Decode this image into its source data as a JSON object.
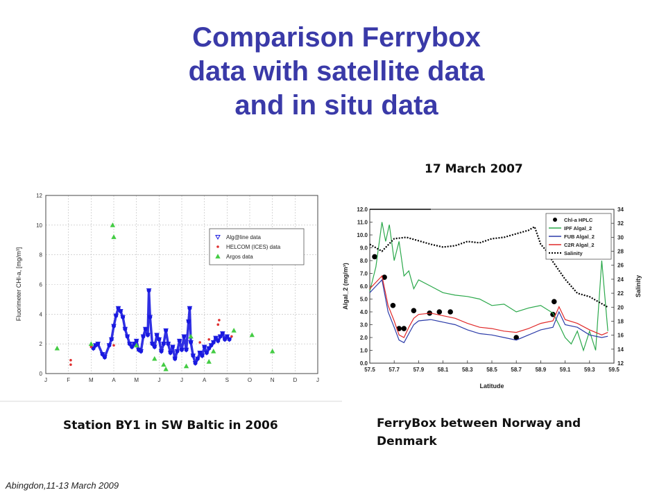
{
  "slide": {
    "title_lines": [
      "Comparison Ferrybox",
      "data with satellite data",
      "and in situ data"
    ],
    "date_label": "17 March 2007",
    "caption_left": "Station BY1 in SW Baltic in 2006",
    "caption_right": "FerryBox between Norway and Denmark",
    "footer": "Abingdon,11-13 March 2009"
  },
  "chart_data": [
    {
      "type": "scatter",
      "ylabel": "Fluorimeter CHl-a, [mg/m³]",
      "xlabel": "",
      "x_ticks": [
        "J",
        "F",
        "M",
        "A",
        "M",
        "J",
        "J",
        "A",
        "S",
        "O",
        "N",
        "D",
        "J"
      ],
      "ylim": [
        0,
        12
      ],
      "y_ticks": [
        0,
        2,
        4,
        6,
        8,
        10,
        12
      ],
      "grid": true,
      "legend_position": "upper-right",
      "series": [
        {
          "name": "Alg@line data",
          "color": "#1a1ae0",
          "marker": "triangle-down",
          "points": [
            [
              2.1,
              1.7
            ],
            [
              2.2,
              1.9
            ],
            [
              2.3,
              2.0
            ],
            [
              2.5,
              1.3
            ],
            [
              2.6,
              1.1
            ],
            [
              2.8,
              1.9
            ],
            [
              2.9,
              2.3
            ],
            [
              3.0,
              3.2
            ],
            [
              3.1,
              3.9
            ],
            [
              3.2,
              4.4
            ],
            [
              3.3,
              4.2
            ],
            [
              3.4,
              3.8
            ],
            [
              3.5,
              3.0
            ],
            [
              3.6,
              2.5
            ],
            [
              3.7,
              2.0
            ],
            [
              3.8,
              1.8
            ],
            [
              3.9,
              2.0
            ],
            [
              4.0,
              2.2
            ],
            [
              4.1,
              1.6
            ],
            [
              4.2,
              1.5
            ],
            [
              4.3,
              2.5
            ],
            [
              4.4,
              3.0
            ],
            [
              4.5,
              2.6
            ],
            [
              4.55,
              5.6
            ],
            [
              4.6,
              3.8
            ],
            [
              4.7,
              2.0
            ],
            [
              4.8,
              1.8
            ],
            [
              4.9,
              2.6
            ],
            [
              5.0,
              2.3
            ],
            [
              5.1,
              1.5
            ],
            [
              5.2,
              2.0
            ],
            [
              5.3,
              2.9
            ],
            [
              5.4,
              2.0
            ],
            [
              5.5,
              1.4
            ],
            [
              5.6,
              1.8
            ],
            [
              5.7,
              1.0
            ],
            [
              5.8,
              1.5
            ],
            [
              5.9,
              2.2
            ],
            [
              6.0,
              1.6
            ],
            [
              6.1,
              2.5
            ],
            [
              6.2,
              1.6
            ],
            [
              6.3,
              3.5
            ],
            [
              6.35,
              4.4
            ],
            [
              6.4,
              2.1
            ],
            [
              6.5,
              1.2
            ],
            [
              6.6,
              0.7
            ],
            [
              6.7,
              1.0
            ],
            [
              6.8,
              1.4
            ],
            [
              6.9,
              1.2
            ],
            [
              7.0,
              1.8
            ],
            [
              7.1,
              1.4
            ],
            [
              7.2,
              1.7
            ],
            [
              7.3,
              1.9
            ],
            [
              7.4,
              2.1
            ],
            [
              7.5,
              2.4
            ],
            [
              7.6,
              2.2
            ],
            [
              7.7,
              2.5
            ],
            [
              7.8,
              2.7
            ],
            [
              7.9,
              2.3
            ],
            [
              8.0,
              2.5
            ],
            [
              8.1,
              2.3
            ]
          ]
        },
        {
          "name": "HELCOM (ICES) data",
          "color": "#e03030",
          "marker": "star",
          "points": [
            [
              1.1,
              0.6
            ],
            [
              1.1,
              0.9
            ],
            [
              2.0,
              1.8
            ],
            [
              3.0,
              1.9
            ],
            [
              6.8,
              2.1
            ],
            [
              7.2,
              2.3
            ],
            [
              7.6,
              3.3
            ],
            [
              7.65,
              3.6
            ],
            [
              8.2,
              2.5
            ]
          ]
        },
        {
          "name": "Argos data",
          "color": "#44cc44",
          "marker": "triangle-up",
          "points": [
            [
              0.5,
              1.7
            ],
            [
              2.0,
              2.0
            ],
            [
              2.95,
              10.0
            ],
            [
              3.0,
              9.2
            ],
            [
              4.0,
              1.9
            ],
            [
              4.8,
              1.0
            ],
            [
              5.2,
              0.6
            ],
            [
              5.3,
              0.3
            ],
            [
              6.2,
              0.5
            ],
            [
              6.4,
              2.5
            ],
            [
              7.2,
              0.8
            ],
            [
              7.4,
              1.5
            ],
            [
              8.3,
              2.9
            ],
            [
              9.1,
              2.6
            ],
            [
              10.0,
              1.5
            ]
          ]
        }
      ]
    },
    {
      "type": "line",
      "xlabel": "Latitude",
      "ylabel": "Algal_2 (mg/m³)",
      "y2label": "Salinity",
      "xlim": [
        57.5,
        59.5
      ],
      "x_ticks": [
        57.5,
        57.7,
        57.9,
        58.1,
        58.3,
        58.5,
        58.7,
        58.9,
        59.1,
        59.3,
        59.5
      ],
      "ylim": [
        0,
        12
      ],
      "y_ticks": [
        0.0,
        1.0,
        2.0,
        3.0,
        4.0,
        5.0,
        6.0,
        7.0,
        8.0,
        9.0,
        10.0,
        11.0,
        12.0
      ],
      "y2lim": [
        12,
        34
      ],
      "y2_ticks": [
        12,
        14,
        16,
        18,
        20,
        22,
        24,
        26,
        28,
        30,
        32,
        34
      ],
      "legend_position": "upper-right",
      "series": [
        {
          "name": "Chl-a HPLC",
          "color": "#000000",
          "marker": "circle",
          "axis": "left",
          "x": [
            57.54,
            57.62,
            57.69,
            57.74,
            57.78,
            57.86,
            57.99,
            58.07,
            58.16,
            58.7,
            59.0,
            59.01
          ],
          "y": [
            8.3,
            6.7,
            4.5,
            2.7,
            2.7,
            4.1,
            3.9,
            4.0,
            4.0,
            2.0,
            3.8,
            4.8
          ]
        },
        {
          "name": "IPF Algal_2",
          "color": "#2aa84a",
          "axis": "left",
          "x": [
            57.5,
            57.55,
            57.6,
            57.63,
            57.66,
            57.7,
            57.74,
            57.78,
            57.82,
            57.86,
            57.9,
            58.0,
            58.1,
            58.2,
            58.3,
            58.4,
            58.5,
            58.6,
            58.7,
            58.8,
            58.9,
            59.0,
            59.05,
            59.1,
            59.15,
            59.2,
            59.25,
            59.3,
            59.35,
            59.4,
            59.45
          ],
          "y": [
            5.6,
            7.5,
            11.0,
            9.5,
            10.8,
            8.0,
            9.5,
            6.8,
            7.2,
            5.8,
            6.5,
            6.0,
            5.5,
            5.3,
            5.2,
            5.0,
            4.5,
            4.6,
            4.0,
            4.3,
            4.5,
            3.9,
            3.0,
            2.0,
            1.5,
            2.5,
            1.0,
            2.5,
            1.0,
            8.0,
            2.5
          ]
        },
        {
          "name": "FUB Algal_2",
          "color": "#2a3aa8",
          "axis": "left",
          "x": [
            57.5,
            57.55,
            57.6,
            57.65,
            57.7,
            57.74,
            57.78,
            57.82,
            57.86,
            57.9,
            58.0,
            58.1,
            58.2,
            58.3,
            58.4,
            58.5,
            58.6,
            58.7,
            58.8,
            58.9,
            59.0,
            59.05,
            59.1,
            59.2,
            59.3,
            59.4,
            59.45
          ],
          "y": [
            5.5,
            6.0,
            6.5,
            4.0,
            2.8,
            1.8,
            1.6,
            2.3,
            3.0,
            3.3,
            3.4,
            3.2,
            3.0,
            2.6,
            2.3,
            2.2,
            2.0,
            1.8,
            2.2,
            2.6,
            2.8,
            4.0,
            3.0,
            2.8,
            2.2,
            2.0,
            2.1
          ]
        },
        {
          "name": "C2R Algal_2",
          "color": "#e02828",
          "axis": "left",
          "x": [
            57.5,
            57.55,
            57.6,
            57.65,
            57.7,
            57.74,
            57.78,
            57.82,
            57.86,
            57.9,
            58.0,
            58.1,
            58.2,
            58.3,
            58.4,
            58.5,
            58.6,
            58.7,
            58.8,
            58.9,
            59.0,
            59.05,
            59.1,
            59.2,
            59.3,
            59.4,
            59.45
          ],
          "y": [
            5.8,
            6.3,
            6.8,
            4.5,
            3.3,
            2.2,
            2.0,
            2.8,
            3.5,
            3.8,
            3.9,
            3.7,
            3.5,
            3.1,
            2.8,
            2.7,
            2.5,
            2.4,
            2.7,
            3.1,
            3.3,
            4.4,
            3.4,
            3.1,
            2.6,
            2.2,
            2.4
          ]
        },
        {
          "name": "Salinity",
          "color": "#000000",
          "dash": "dotted",
          "axis": "right",
          "x": [
            57.5,
            57.55,
            57.6,
            57.7,
            57.8,
            57.9,
            58.0,
            58.1,
            58.2,
            58.3,
            58.4,
            58.5,
            58.6,
            58.7,
            58.8,
            58.85,
            58.9,
            58.95,
            59.0,
            59.1,
            59.2,
            59.3,
            59.35,
            59.4,
            59.45
          ],
          "y": [
            29.0,
            28.5,
            28.0,
            29.8,
            30.0,
            29.5,
            29.0,
            28.6,
            28.8,
            29.4,
            29.2,
            29.8,
            30.0,
            30.5,
            31.0,
            31.5,
            29.0,
            28.0,
            26.5,
            24.0,
            22.0,
            21.5,
            21.0,
            20.5,
            20.0
          ]
        }
      ]
    }
  ]
}
